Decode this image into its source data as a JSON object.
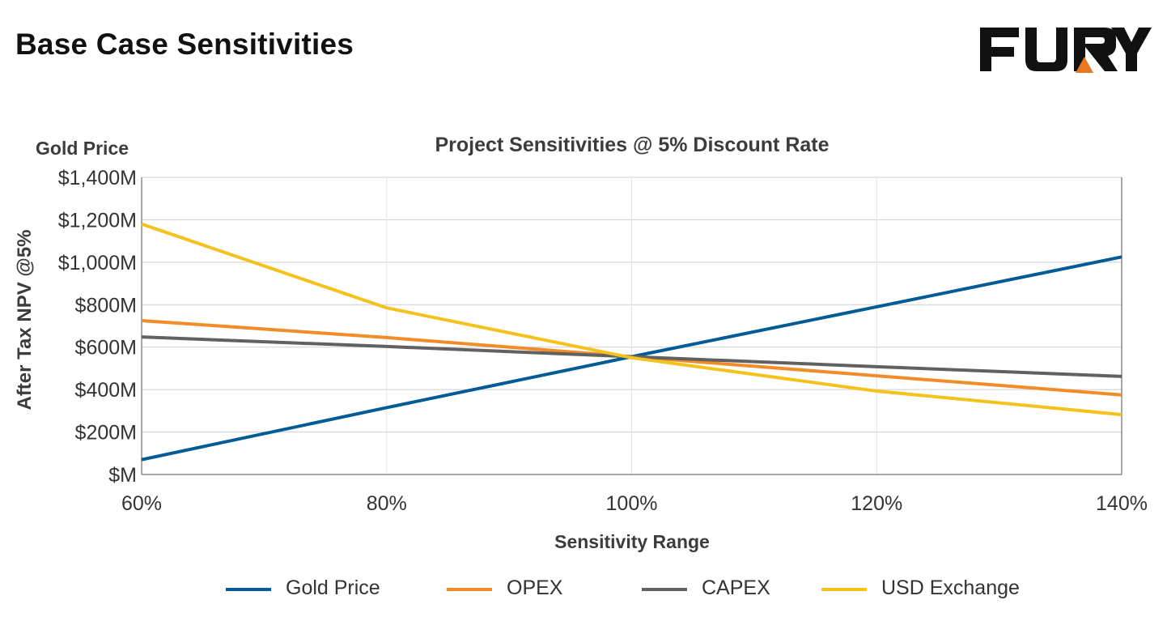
{
  "page": {
    "title": "Base Case Sensitivities",
    "logo_text": "FURY"
  },
  "colors": {
    "gold_price": "#005b96",
    "opex": "#f28c28",
    "capex": "#616161",
    "usd_exchange": "#f5c11c",
    "logo": "#111111",
    "logo_accent": "#e87722"
  },
  "chart_data": {
    "type": "line",
    "title": "Project Sensitivities @ 5% Discount Rate",
    "corner_label": "Gold Price",
    "xlabel": "Sensitivity Range",
    "ylabel": "After Tax NPV @5%",
    "categories": [
      "60%",
      "80%",
      "100%",
      "120%",
      "140%"
    ],
    "x": [
      60,
      80,
      100,
      120,
      140
    ],
    "xlim": [
      60,
      140
    ],
    "ylim": [
      0,
      1400
    ],
    "y_ticks": [
      0,
      200,
      400,
      600,
      800,
      1000,
      1200,
      1400
    ],
    "y_tick_labels": [
      "$M",
      "$200M",
      "$400M",
      "$600M",
      "$800M",
      "$1,000M",
      "$1,200M",
      "$1,400M"
    ],
    "grid": true,
    "legend_position": "bottom",
    "series": [
      {
        "name": "Gold Price",
        "key": "gold_price",
        "values": [
          70,
          315,
          555,
          790,
          1025
        ]
      },
      {
        "name": "OPEX",
        "key": "opex",
        "values": [
          725,
          645,
          555,
          465,
          375
        ]
      },
      {
        "name": "CAPEX",
        "key": "capex",
        "values": [
          648,
          603,
          555,
          508,
          462
        ]
      },
      {
        "name": "USD Exchange",
        "key": "usd_exchange",
        "values": [
          1180,
          785,
          550,
          393,
          282
        ]
      }
    ]
  }
}
